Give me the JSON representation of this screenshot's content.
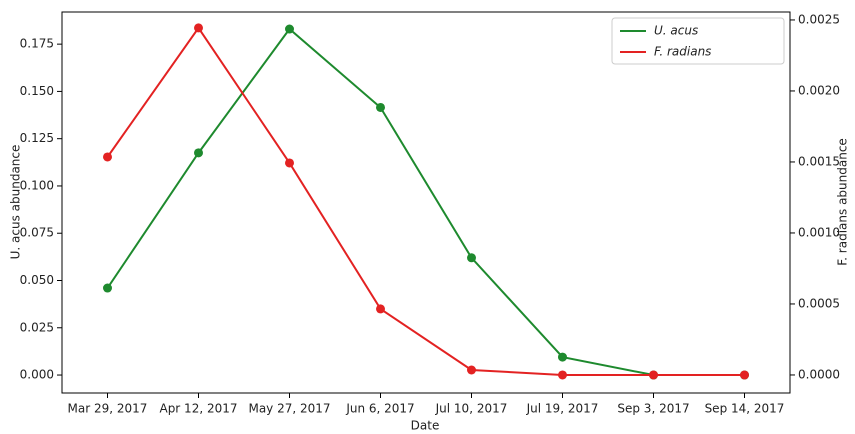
{
  "chart_data": {
    "type": "line",
    "x_label": "Date",
    "y_label": "U. acus abundance",
    "y2_label": "F. radians abundance",
    "categories": [
      "Mar 29, 2017",
      "Apr 12, 2017",
      "May 27, 2017",
      "Jun 6, 2017",
      "Jul 10, 2017",
      "Jul 19, 2017",
      "Sep 3, 2017",
      "Sep 14, 2017"
    ],
    "series": [
      {
        "name": "U. acus",
        "color": "#1e8a2e",
        "values": [
          0.046,
          0.1175,
          0.183,
          0.1415,
          0.062,
          0.0095,
          0.0,
          0.0
        ]
      },
      {
        "name": "F. radians",
        "color": "#e32222",
        "axis": "y2",
        "values": [
          0.001535,
          0.002444,
          0.001493,
          0.000465,
          3.5e-05,
          0.0,
          0.0,
          0.0
        ]
      }
    ],
    "ylim": [
      -0.0095,
      0.192
    ],
    "yticks": [
      {
        "value": 0,
        "label": "0.000"
      },
      0.025,
      {
        "value": 0.05,
        "label": "0.050"
      },
      0.075,
      {
        "value": 0.1,
        "label": "0.100"
      },
      0.125,
      {
        "value": 0.15,
        "label": "0.150"
      },
      0.175
    ],
    "y2lim": [
      -0.000127,
      0.002556
    ],
    "y2ticks": [
      {
        "value": 0,
        "label": "0.0000"
      },
      0.0005,
      {
        "value": 0.001,
        "label": "0.0010"
      },
      0.0015,
      {
        "value": 0.002,
        "label": "0.0020"
      },
      0.0025
    ],
    "legend": "upper right",
    "grid": false
  }
}
